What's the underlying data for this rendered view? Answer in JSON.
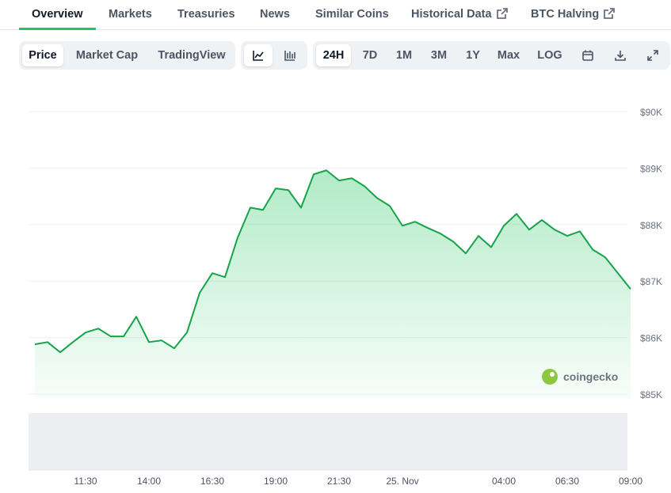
{
  "tabs": [
    "Overview",
    "Markets",
    "Treasuries",
    "News",
    "Similar Coins",
    "Historical Data",
    "BTC Halving"
  ],
  "view_buttons": [
    "Price",
    "Market Cap",
    "TradingView"
  ],
  "range_buttons": [
    "24H",
    "7D",
    "1M",
    "3M",
    "1Y",
    "Max",
    "LOG"
  ],
  "chart_data": {
    "type": "line",
    "color": "#16a34a",
    "categories": [
      null,
      null,
      null,
      null,
      "11:30",
      null,
      null,
      null,
      null,
      "14:00",
      null,
      null,
      null,
      null,
      "16:30",
      null,
      null,
      null,
      null,
      "19:00",
      null,
      null,
      null,
      null,
      "21:30",
      null,
      null,
      null,
      null,
      "25. Nov",
      null,
      null,
      null,
      null,
      null,
      null,
      null,
      "04:00",
      null,
      null,
      null,
      null,
      "06:30",
      null,
      null,
      null,
      null,
      "09:00"
    ],
    "values": [
      85.88,
      85.92,
      85.74,
      85.92,
      86.09,
      86.16,
      86.02,
      86.02,
      86.37,
      85.92,
      85.95,
      85.81,
      86.09,
      86.79,
      87.14,
      87.07,
      87.77,
      88.3,
      88.26,
      88.64,
      88.61,
      88.3,
      88.89,
      88.96,
      88.78,
      88.82,
      88.68,
      88.47,
      88.33,
      87.98,
      88.05,
      87.94,
      87.84,
      87.7,
      87.49,
      87.8,
      87.6,
      87.98,
      88.19,
      87.91,
      88.08,
      87.91,
      87.8,
      87.88,
      87.56,
      87.42,
      87.14,
      86.86
    ],
    "ylim": [
      85,
      90
    ],
    "yticks": [
      {
        "value": 85,
        "label": "$85K"
      },
      {
        "value": 86,
        "label": "$86K"
      },
      {
        "value": 87,
        "label": "$87K"
      },
      {
        "value": 88,
        "label": "$88K"
      },
      {
        "value": 89,
        "label": "$89K"
      },
      {
        "value": 90,
        "label": "$90K"
      }
    ],
    "grid": true,
    "watermark": "coingecko"
  }
}
